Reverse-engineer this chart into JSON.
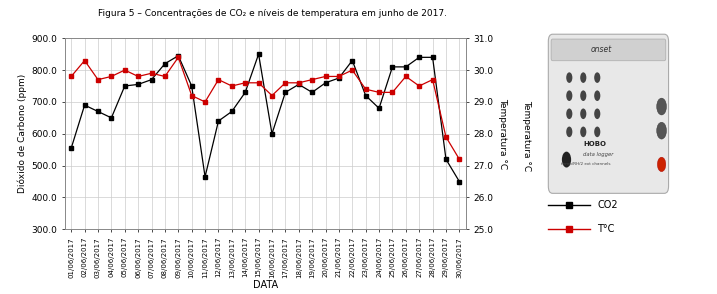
{
  "title": "Figura 5 – Concentrações de CO₂ e níveis de temperatura em junho de 2017.",
  "xlabel": "DATA",
  "ylabel_left": "Dióxido de Carbono (ppm)",
  "ylabel_right": "Temperatura °C",
  "dates": [
    "01/06/2017",
    "02/06/2017",
    "03/06/2017",
    "04/06/2017",
    "05/06/2017",
    "06/06/2017",
    "07/06/2017",
    "08/06/2017",
    "09/06/2017",
    "10/06/2017",
    "11/06/2017",
    "12/06/2017",
    "13/06/2017",
    "14/06/2017",
    "15/06/2017",
    "16/06/2017",
    "17/06/2017",
    "18/06/2017",
    "19/06/2017",
    "20/06/2017",
    "21/06/2017",
    "22/06/2017",
    "23/06/2017",
    "24/06/2017",
    "25/06/2017",
    "26/06/2017",
    "27/06/2017",
    "28/06/2017",
    "29/06/2017",
    "30/06/2017"
  ],
  "co2": [
    555,
    690,
    670,
    650,
    750,
    755,
    770,
    820,
    845,
    750,
    465,
    640,
    670,
    730,
    850,
    600,
    730,
    755,
    730,
    760,
    775,
    830,
    720,
    680,
    810,
    810,
    840,
    840,
    520,
    450
  ],
  "temp": [
    29.8,
    30.3,
    29.7,
    29.8,
    30.0,
    29.8,
    29.9,
    29.8,
    30.4,
    29.2,
    29.0,
    29.7,
    29.5,
    29.6,
    29.6,
    29.2,
    29.6,
    29.6,
    29.7,
    29.8,
    29.8,
    30.0,
    29.4,
    29.3,
    29.3,
    29.8,
    29.5,
    29.7,
    27.9,
    27.2
  ],
  "co2_color": "#000000",
  "temp_color": "#cc0000",
  "ylim_left": [
    300,
    900
  ],
  "ylim_right": [
    25.0,
    31.0
  ],
  "yticks_left": [
    300.0,
    400.0,
    500.0,
    600.0,
    700.0,
    800.0,
    900.0
  ],
  "yticks_right": [
    25.0,
    26.0,
    27.0,
    28.0,
    29.0,
    30.0,
    31.0
  ],
  "background_color": "#ffffff",
  "grid_color": "#cccccc"
}
